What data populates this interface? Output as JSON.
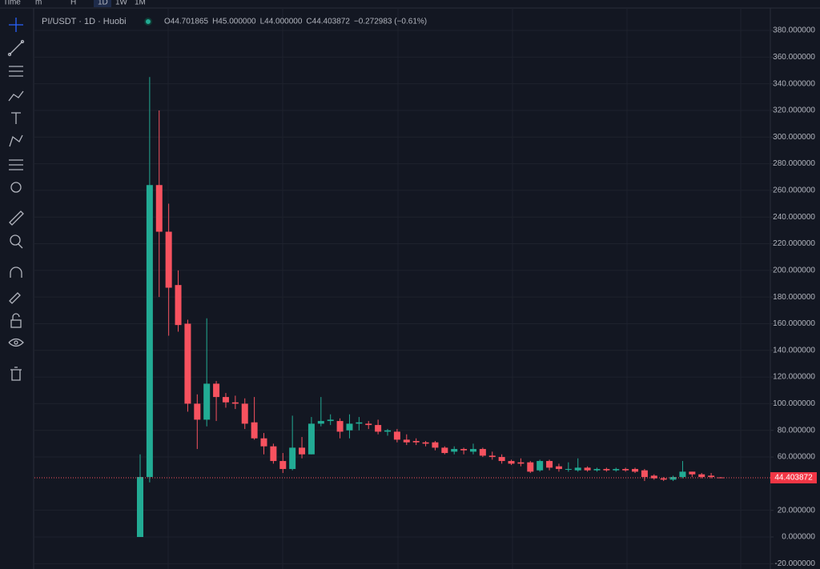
{
  "toolbar": [
    "Time",
    "m",
    "H",
    "1D",
    "1W",
    "1M"
  ],
  "chart_data": {
    "type": "candlestick",
    "title": "PI/USDT · 1D · Huobi",
    "legend": [
      {
        "label": "O",
        "value": "44.701865"
      },
      {
        "label": "H",
        "value": "45.000000"
      },
      {
        "label": "L",
        "value": "44.000000"
      },
      {
        "label": "C",
        "value": "44.403872"
      }
    ],
    "change": "−0.272983 (−0.61%)",
    "up_color": "#22ab94",
    "down_color": "#f7525f",
    "open": [
      0,
      45,
      264,
      229,
      189,
      160,
      100,
      88,
      115,
      105,
      101,
      100,
      86,
      74,
      68,
      57,
      51,
      67,
      62,
      85,
      87,
      87,
      80,
      85,
      85,
      84,
      79,
      79,
      73,
      72,
      71,
      71,
      67,
      64,
      66,
      64,
      66,
      61,
      60,
      57,
      56,
      56,
      50,
      57,
      53,
      51,
      50,
      52,
      50,
      51,
      50,
      51,
      51,
      50,
      46,
      44,
      43,
      45,
      49,
      47,
      46,
      44.701865
    ],
    "high": [
      62,
      345,
      320,
      250,
      200,
      163,
      107,
      164,
      117,
      108,
      106,
      104,
      105,
      78,
      70,
      63,
      91,
      75,
      90,
      105,
      92,
      89,
      92,
      90,
      87,
      88,
      81,
      81,
      77,
      74,
      72,
      72,
      68,
      68,
      67,
      70,
      67,
      64,
      62,
      58,
      59,
      57,
      58,
      58,
      55,
      56,
      59,
      53,
      52,
      52,
      52,
      52,
      52,
      51,
      47,
      45,
      46,
      57,
      49,
      48,
      48,
      45
    ],
    "low": [
      0,
      41,
      180,
      151,
      154,
      94,
      66,
      83,
      87,
      97,
      96,
      81,
      73,
      62,
      55,
      48,
      50,
      59,
      62,
      83,
      84,
      74,
      74,
      80,
      81,
      77,
      76,
      71,
      69,
      69,
      68,
      65,
      62,
      62,
      62,
      62,
      60,
      58,
      55,
      54,
      53,
      48,
      49,
      50,
      49,
      49,
      49,
      49,
      49,
      49,
      49,
      49,
      48,
      42,
      43,
      42,
      42,
      44,
      45,
      44,
      44,
      44
    ],
    "close": [
      45,
      264,
      229,
      187,
      159,
      100,
      88,
      115,
      105,
      101,
      100,
      85,
      74,
      68,
      57,
      51,
      67,
      62,
      85,
      87,
      88,
      79,
      85,
      86,
      84,
      79,
      80,
      73,
      71,
      71,
      70,
      67,
      63,
      66,
      65,
      66,
      61,
      60,
      57,
      55,
      55,
      49,
      57,
      52,
      51,
      51,
      52,
      50,
      51,
      50,
      51,
      50,
      49,
      45,
      44,
      43,
      45,
      49,
      47,
      45,
      45,
      44.403872
    ],
    "ylim": [
      -20,
      390
    ],
    "yticks": [
      {
        "value": -20,
        "label": "-20.000000"
      },
      {
        "value": 0,
        "label": "0.000000"
      },
      {
        "value": 20,
        "label": "20.000000"
      },
      {
        "value": 60,
        "label": "60.000000"
      },
      {
        "value": 80,
        "label": "80.000000"
      },
      {
        "value": 100,
        "label": "100.000000"
      },
      {
        "value": 120,
        "label": "120.000000"
      },
      {
        "value": 140,
        "label": "140.000000"
      },
      {
        "value": 160,
        "label": "160.000000"
      },
      {
        "value": 180,
        "label": "180.000000"
      },
      {
        "value": 200,
        "label": "200.000000"
      },
      {
        "value": 220,
        "label": "220.000000"
      },
      {
        "value": 240,
        "label": "240.000000"
      },
      {
        "value": 260,
        "label": "260.000000"
      },
      {
        "value": 280,
        "label": "280.000000"
      },
      {
        "value": 300,
        "label": "300.000000"
      },
      {
        "value": 320,
        "label": "320.000000"
      },
      {
        "value": 340,
        "label": "340.000000"
      },
      {
        "value": 360,
        "label": "360.000000"
      },
      {
        "value": 380,
        "label": "380.000000"
      }
    ],
    "last_price": 44.403872,
    "grid": true
  }
}
